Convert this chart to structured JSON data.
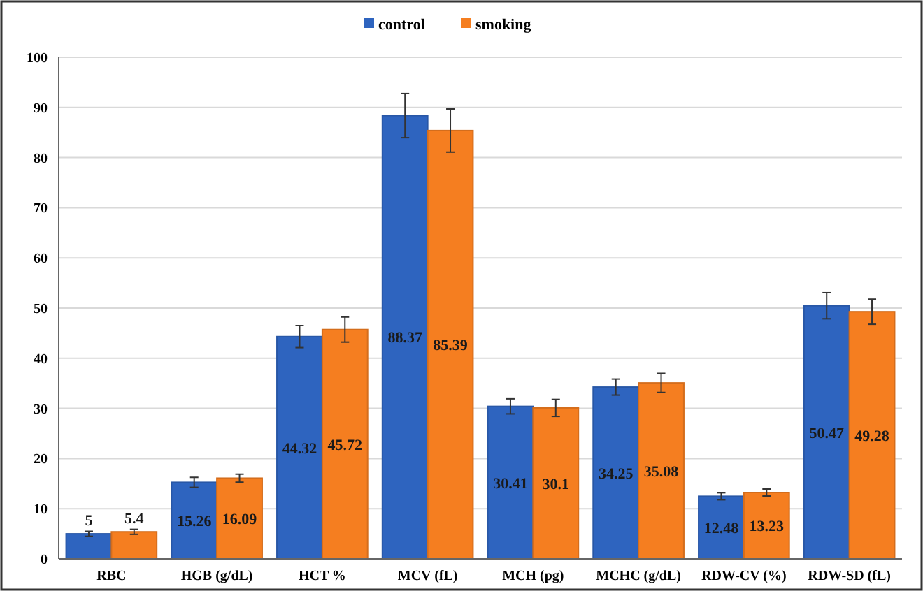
{
  "chart_data": {
    "type": "bar",
    "categories": [
      "RBC",
      "HGB (g/dL)",
      "HCT %",
      "MCV (fL)",
      "MCH (pg)",
      "MCHC (g/dL)",
      "RDW-CV (%)",
      "RDW-SD (fL)"
    ],
    "series": [
      {
        "name": "control",
        "color": "#2e64bf",
        "values": [
          5,
          15.26,
          44.32,
          88.37,
          30.41,
          34.25,
          12.48,
          50.47
        ],
        "errors": [
          0.5,
          1,
          2.2,
          4.4,
          1.5,
          1.6,
          0.7,
          2.6
        ]
      },
      {
        "name": "smoking",
        "color": "#f57e20",
        "values": [
          5.4,
          16.09,
          45.72,
          85.39,
          30.1,
          35.08,
          13.23,
          49.28
        ],
        "errors": [
          0.5,
          0.8,
          2.5,
          4.3,
          1.7,
          1.9,
          0.7,
          2.5
        ]
      }
    ],
    "ylim": [
      0,
      100
    ],
    "yticks": [
      0,
      10,
      20,
      30,
      40,
      50,
      60,
      70,
      80,
      90,
      100
    ],
    "grid": "y",
    "legend": "top",
    "data_labels": true
  }
}
